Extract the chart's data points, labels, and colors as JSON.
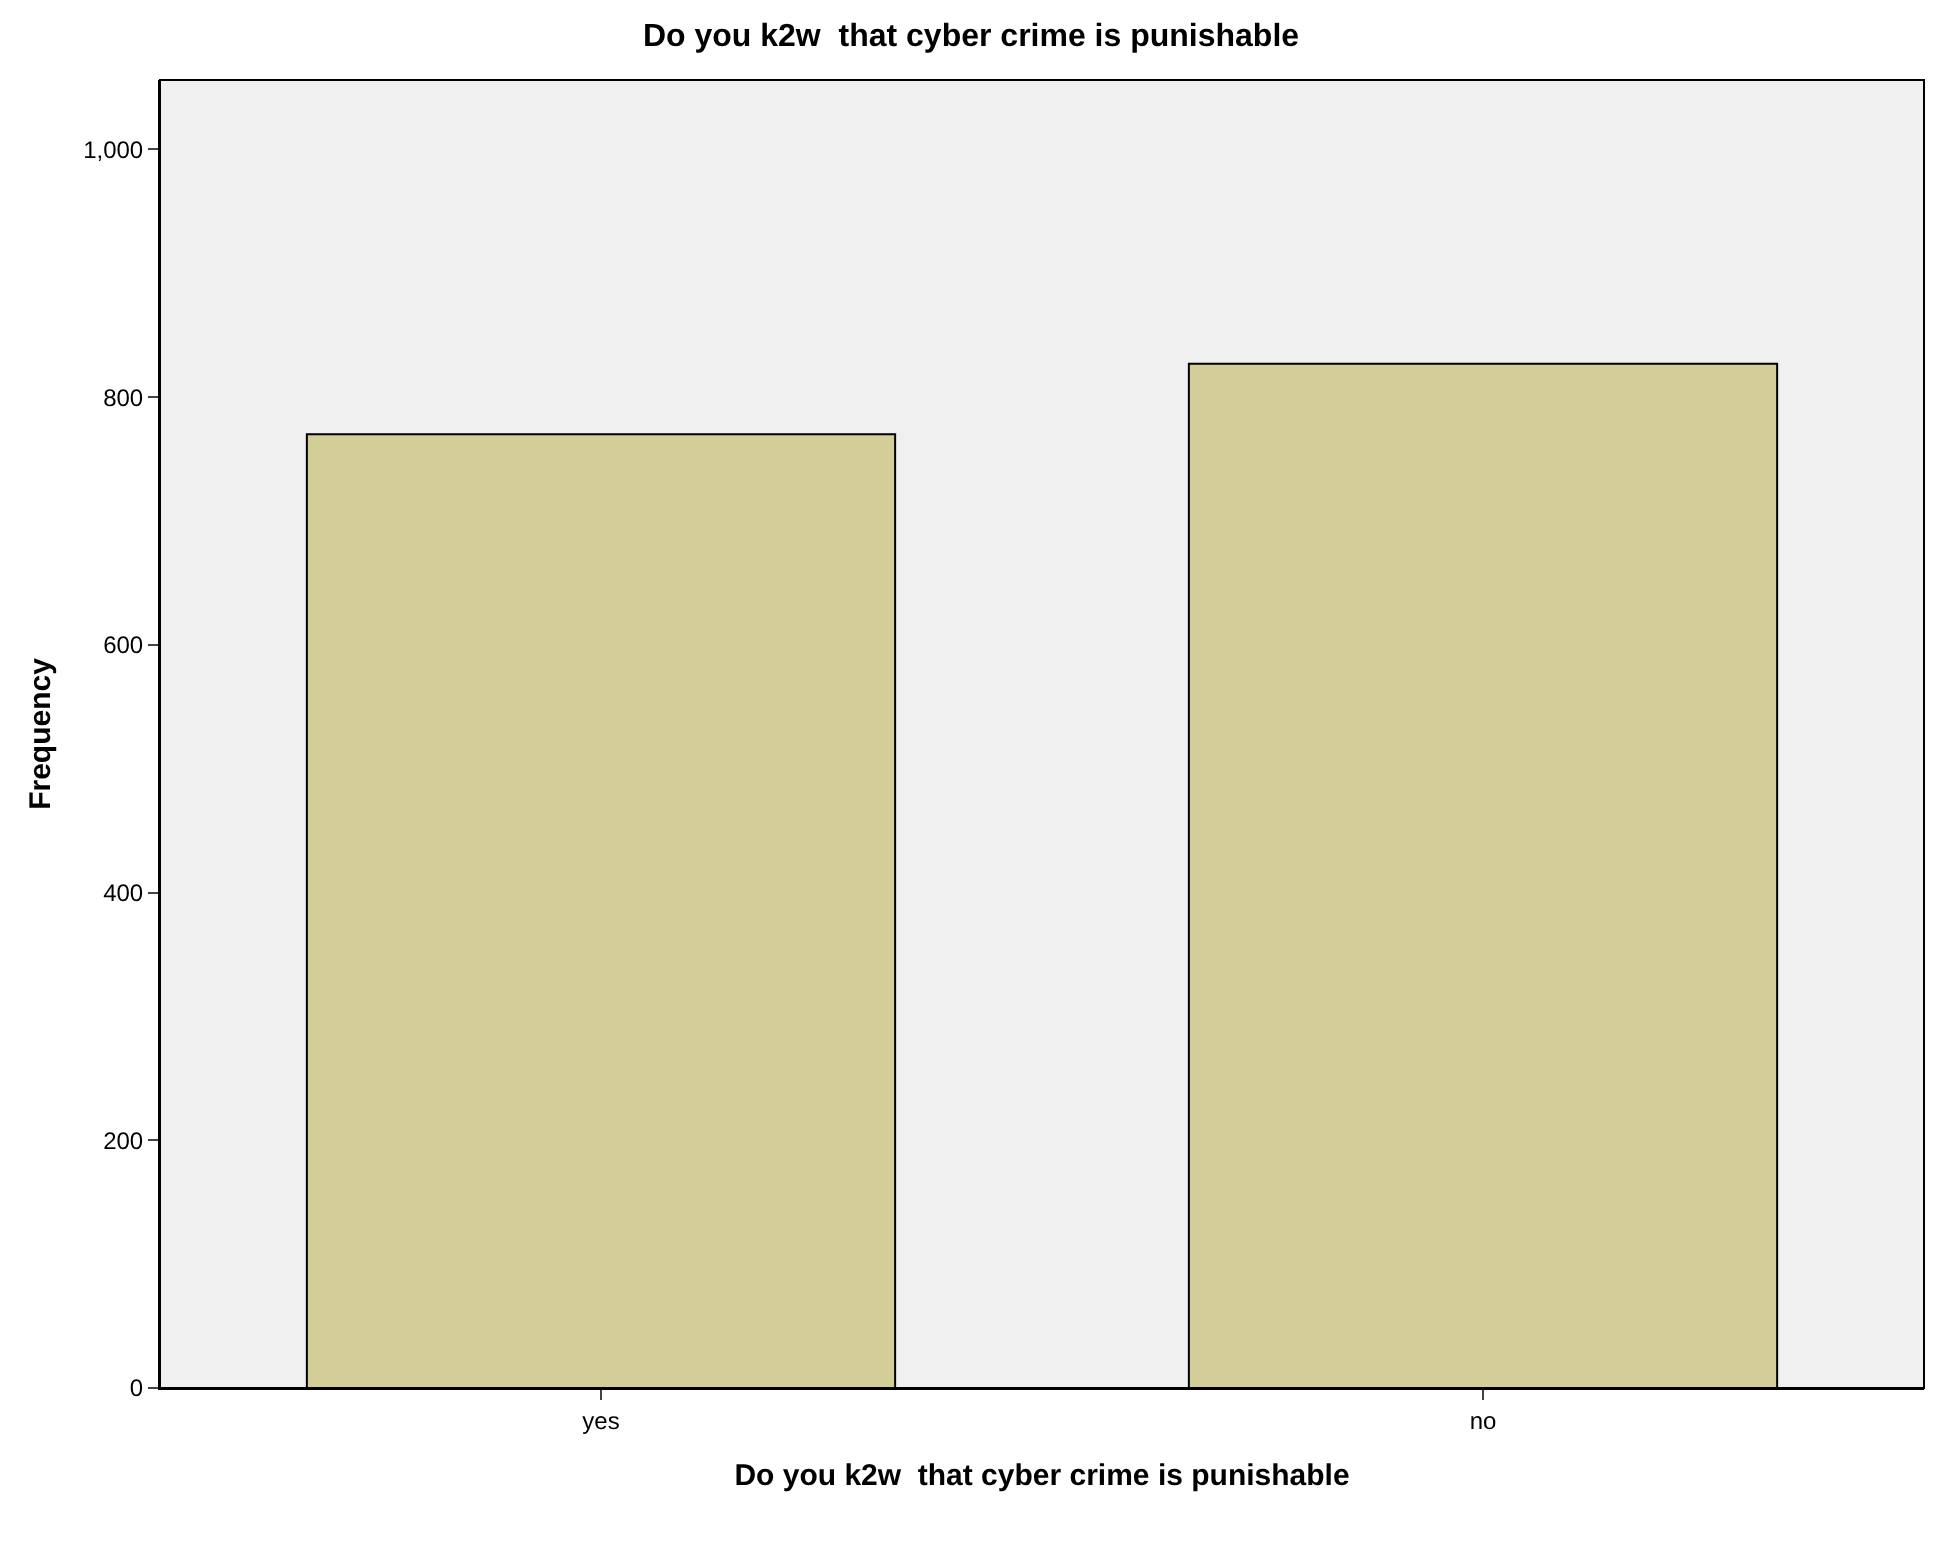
{
  "chart_data": {
    "type": "bar",
    "title": "Do you k2w  that cyber crime is punishable",
    "xlabel": "Do you k2w  that cyber crime is punishable",
    "ylabel": "Frequency",
    "categories": [
      "yes",
      "no"
    ],
    "values": [
      770,
      827
    ],
    "color": "#d3cd97",
    "ylim": [
      0,
      1056
    ],
    "yticks": [
      0,
      200,
      400,
      600,
      800,
      {
        "value": 1000,
        "label": "1,000"
      }
    ],
    "grid": false,
    "legend": false
  }
}
